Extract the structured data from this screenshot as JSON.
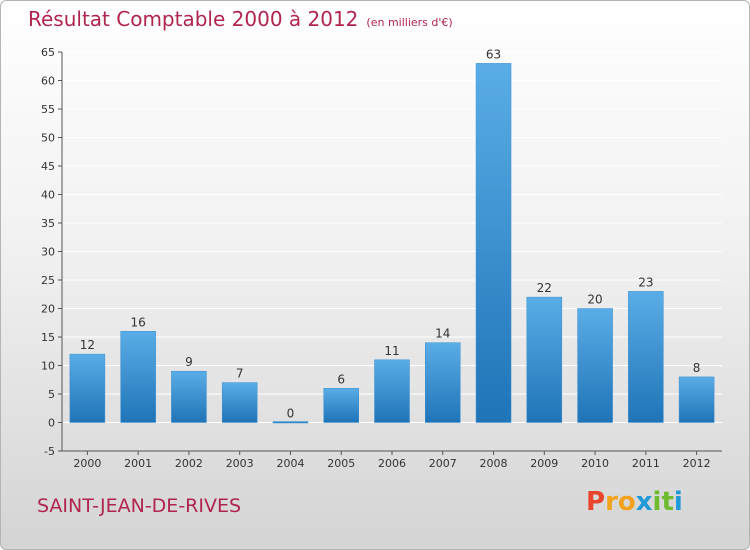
{
  "header": {
    "title": "Résultat Comptable 2000 à 2012",
    "subtitle": "(en milliers d'€)"
  },
  "footer": {
    "commune": "SAINT-JEAN-DE-RIVES",
    "logo": "Proxiti",
    "logo_colors": [
      "#e8452c",
      "#f3a21b",
      "#f3a21b",
      "#1f9ad6",
      "#6dbb2e",
      "#6dbb2e",
      "#1f9ad6"
    ]
  },
  "colors": {
    "bar_top": "#5aade6",
    "bar_bottom": "#1f74b8",
    "title": "#b0254d",
    "axis_text": "#333333",
    "grid": "#ffffff"
  },
  "chart_data": {
    "type": "bar",
    "categories": [
      "2000",
      "2001",
      "2002",
      "2003",
      "2004",
      "2005",
      "2006",
      "2007",
      "2008",
      "2009",
      "2010",
      "2011",
      "2012"
    ],
    "values": [
      12,
      16,
      9,
      7,
      0,
      6,
      11,
      14,
      63,
      22,
      20,
      23,
      8
    ],
    "ylim": [
      -5,
      65
    ],
    "yticks": [
      -5,
      0,
      5,
      10,
      15,
      20,
      25,
      30,
      35,
      40,
      45,
      50,
      55,
      60,
      65
    ],
    "grid": true,
    "data_labels": true
  }
}
